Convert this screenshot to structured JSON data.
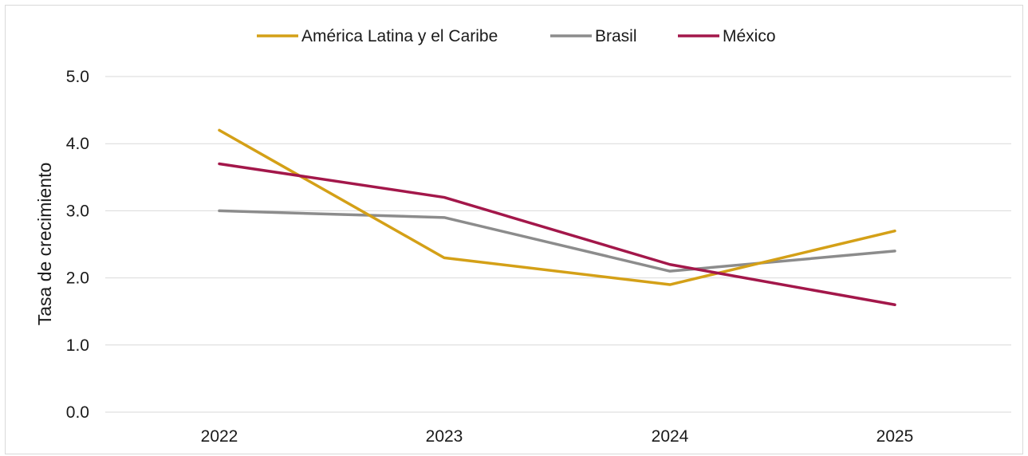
{
  "chart_data": {
    "type": "line",
    "categories": [
      "2022",
      "2023",
      "2024",
      "2025"
    ],
    "series": [
      {
        "name": "América Latina y el Caribe",
        "color": "#d4a017",
        "values": [
          4.2,
          2.3,
          1.9,
          2.7
        ]
      },
      {
        "name": "Brasil",
        "color": "#8c8c8c",
        "values": [
          3.0,
          2.9,
          2.1,
          2.4
        ]
      },
      {
        "name": "México",
        "color": "#a3174a",
        "values": [
          3.7,
          3.2,
          2.2,
          1.6
        ]
      }
    ],
    "ylabel": "Tasa de crecimiento",
    "xlabel": "",
    "ylim": [
      0,
      5
    ],
    "yticks": [
      "0.0",
      "1.0",
      "2.0",
      "3.0",
      "4.0",
      "5.0"
    ],
    "grid": true,
    "legend_position": "top-center"
  }
}
